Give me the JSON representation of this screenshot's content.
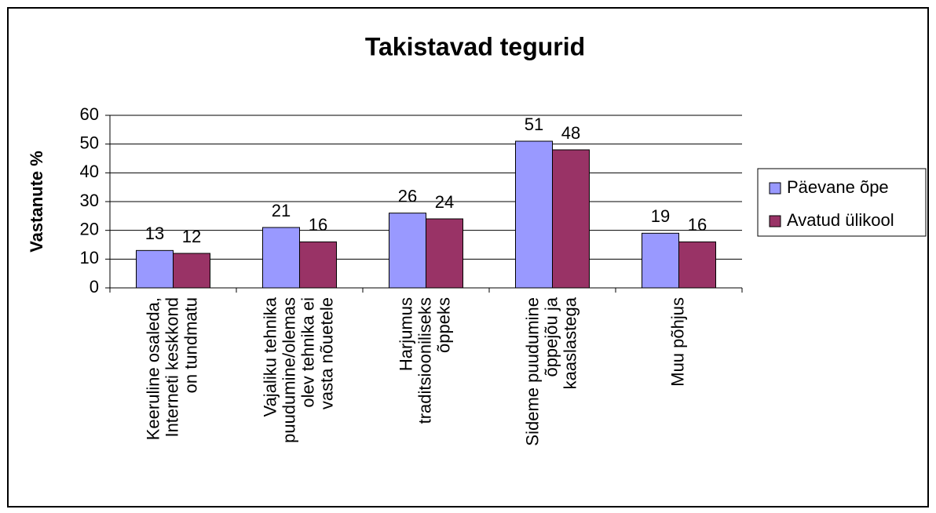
{
  "chart_data": {
    "type": "bar",
    "title": "Takistavad tegurid",
    "y_label": "Vastanute %",
    "categories": [
      [
        "Keeruline osaleda,",
        "Interneti keskkond",
        "on tundmatu"
      ],
      [
        "Vajaliku tehnika",
        "puudumine/olemas",
        "olev tehnika ei",
        "vasta nõuetele"
      ],
      [
        "Harjumus",
        "traditsiooniliseks",
        "õppeks"
      ],
      [
        "Sideme puudumine",
        "õppejõu ja",
        "kaaslastega"
      ],
      [
        "Muu põhjus"
      ]
    ],
    "series": [
      {
        "name": "Päevane õpe",
        "color": "#9999ff",
        "values": [
          13,
          21,
          26,
          51,
          19
        ]
      },
      {
        "name": "Avatud ülikool",
        "color": "#993366",
        "values": [
          12,
          16,
          24,
          48,
          16
        ]
      }
    ],
    "ylim": [
      0,
      60
    ],
    "yticks": [
      0,
      10,
      20,
      30,
      40,
      50,
      60
    ],
    "grid": true,
    "legend": "right"
  }
}
